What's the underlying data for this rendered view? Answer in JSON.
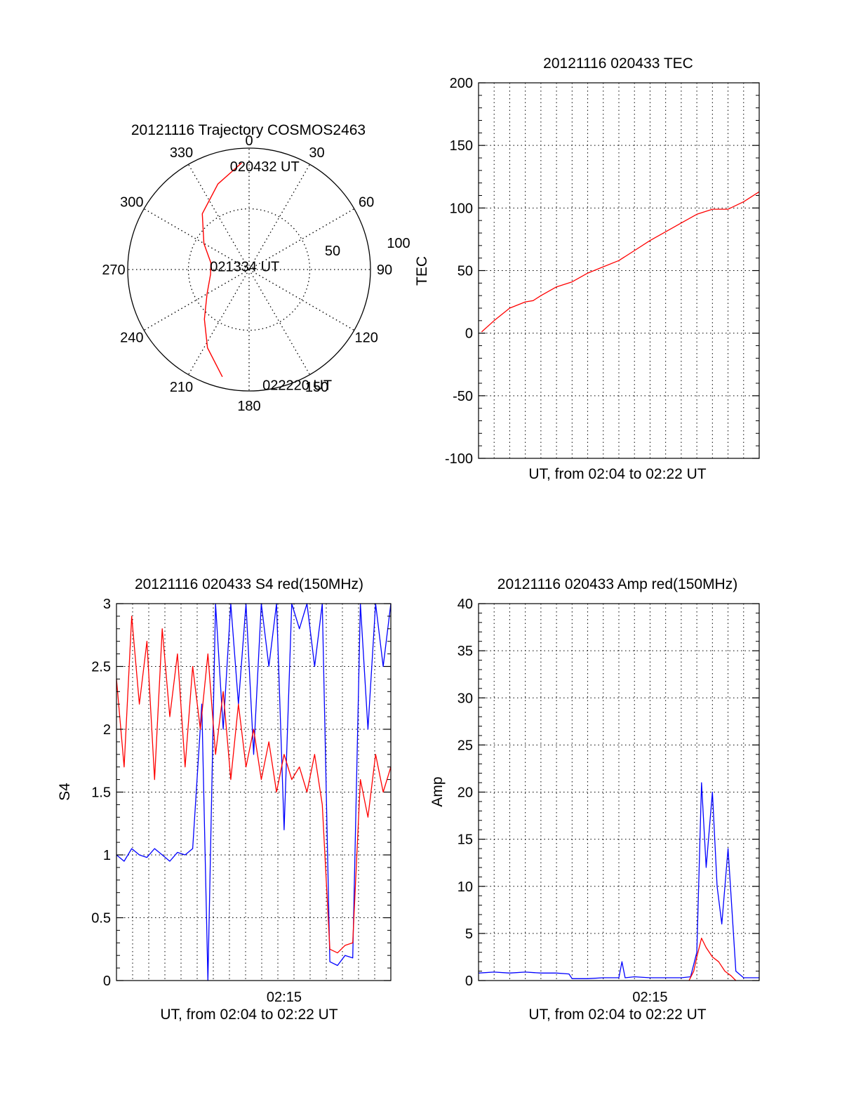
{
  "colors": {
    "red": "#ff0000",
    "blue": "#0000ff",
    "axis": "#000000",
    "grid": "#000000",
    "background": "#ffffff"
  },
  "chart_data": [
    {
      "id": "polar",
      "type": "polar-trajectory",
      "title": "20121116 Trajectory COSMOS2463",
      "angle_labels": [
        "0",
        "30",
        "60",
        "90",
        "120",
        "150",
        "180",
        "210",
        "240",
        "270",
        "300",
        "330"
      ],
      "radius_labels": [
        "50",
        "100"
      ],
      "rmax": 100,
      "grid": true,
      "track": {
        "color": "#ff0000",
        "points": [
          {
            "az": 356,
            "r": 88
          },
          {
            "az": 340,
            "r": 75
          },
          {
            "az": 320,
            "r": 60
          },
          {
            "az": 300,
            "r": 43
          },
          {
            "az": 280,
            "r": 32
          },
          {
            "az": 263,
            "r": 32
          },
          {
            "az": 240,
            "r": 40
          },
          {
            "az": 222,
            "r": 55
          },
          {
            "az": 208,
            "r": 73
          },
          {
            "az": 194,
            "r": 91
          }
        ]
      },
      "annotations": [
        {
          "text": "020432 UT",
          "az": 351,
          "r": 86
        },
        {
          "text": "021334 UT",
          "az": 275,
          "r": 30
        },
        {
          "text": "022220 UT",
          "az": 172,
          "r": 96
        }
      ]
    },
    {
      "id": "tec",
      "type": "line",
      "title": "20121116 020433 TEC",
      "xlabel": "UT, from 02:04 to 02:22 UT",
      "ylabel": "TEC",
      "xlim": [
        0,
        18
      ],
      "ylim": [
        -100,
        200
      ],
      "yticks": [
        -100,
        -50,
        0,
        50,
        100,
        150,
        200
      ],
      "x_tick_labels": [],
      "grid": true,
      "series": [
        {
          "color": "#ff0000",
          "x": [
            0.2,
            1.0,
            2.0,
            3.0,
            3.5,
            4.0,
            5.0,
            6.0,
            7.0,
            8.0,
            9.0,
            10.0,
            11.0,
            12.0,
            13.0,
            14.0,
            15.0,
            16.0,
            17.0,
            18.0
          ],
          "y": [
            1,
            10,
            20,
            25,
            26,
            30,
            37,
            41,
            48,
            53,
            58,
            66,
            74,
            81,
            88,
            95,
            99,
            99,
            105,
            113
          ]
        }
      ]
    },
    {
      "id": "s4",
      "type": "line",
      "title": "20121116 020433 S4 red(150MHz)",
      "xlabel": "UT, from 02:04 to 02:22 UT",
      "ylabel": "S4",
      "xlim": [
        0,
        18
      ],
      "ylim": [
        0,
        3
      ],
      "yticks": [
        0,
        0.5,
        1,
        1.5,
        2,
        2.5,
        3
      ],
      "x_tick_labels": [
        {
          "value": 11,
          "label": "02:15"
        }
      ],
      "grid": true,
      "series": [
        {
          "color": "#0000ff",
          "x": [
            0.0,
            0.5,
            1.0,
            1.5,
            2.0,
            2.5,
            3.0,
            3.5,
            4.0,
            4.5,
            5.0,
            5.6,
            6.0,
            6.5,
            7.0,
            7.5,
            8.0,
            8.5,
            9.0,
            9.5,
            10.0,
            10.5,
            11.0,
            11.5,
            12.0,
            12.5,
            13.0,
            13.5,
            14.0,
            14.5,
            15.0,
            15.5,
            16.0,
            16.5,
            17.0,
            17.5,
            18.0
          ],
          "y": [
            1.0,
            0.95,
            1.05,
            1.0,
            0.98,
            1.05,
            1.0,
            0.95,
            1.02,
            1.0,
            1.05,
            2.2,
            0.0,
            3.0,
            2.0,
            3.0,
            2.2,
            3.0,
            1.8,
            3.0,
            2.5,
            3.0,
            1.2,
            3.0,
            2.8,
            3.0,
            2.5,
            3.0,
            0.15,
            0.12,
            0.2,
            0.18,
            3.0,
            2.0,
            3.0,
            2.5,
            3.0
          ]
        },
        {
          "color": "#ff0000",
          "x": [
            0.0,
            0.5,
            1.0,
            1.5,
            2.0,
            2.5,
            3.0,
            3.5,
            4.0,
            4.5,
            5.0,
            5.5,
            6.0,
            6.5,
            7.0,
            7.5,
            8.0,
            8.5,
            9.0,
            9.5,
            10.0,
            10.5,
            11.0,
            11.5,
            12.0,
            12.5,
            13.0,
            13.5,
            14.0,
            14.5,
            15.0,
            15.5,
            16.0,
            16.5,
            17.0,
            17.5,
            18.0
          ],
          "y": [
            2.4,
            1.7,
            2.9,
            2.2,
            2.7,
            1.6,
            2.8,
            2.1,
            2.6,
            1.7,
            2.5,
            2.0,
            2.6,
            1.8,
            2.3,
            1.6,
            2.2,
            1.7,
            2.0,
            1.6,
            1.9,
            1.5,
            1.8,
            1.6,
            1.7,
            1.5,
            1.8,
            1.4,
            0.25,
            0.22,
            0.28,
            0.3,
            1.6,
            1.3,
            1.8,
            1.5,
            1.7
          ]
        }
      ]
    },
    {
      "id": "amp",
      "type": "line",
      "title": "20121116 020433 Amp red(150MHz)",
      "xlabel": "UT, from 02:04 to 02:22 UT",
      "ylabel": "Amp",
      "xlim": [
        0,
        18
      ],
      "ylim": [
        0,
        40
      ],
      "yticks": [
        0,
        5,
        10,
        15,
        20,
        25,
        30,
        35,
        40
      ],
      "x_tick_labels": [
        {
          "value": 11,
          "label": "02:15"
        }
      ],
      "grid": true,
      "series": [
        {
          "color": "#0000ff",
          "x": [
            0.0,
            1.0,
            2.0,
            3.0,
            4.0,
            5.0,
            5.8,
            6.0,
            7.0,
            8.0,
            9.0,
            9.2,
            9.4,
            10.0,
            11.0,
            12.0,
            13.0,
            13.6,
            14.0,
            14.3,
            14.6,
            15.0,
            15.3,
            15.6,
            16.0,
            16.5,
            17.0,
            18.0
          ],
          "y": [
            0.8,
            0.9,
            0.8,
            0.9,
            0.8,
            0.8,
            0.7,
            0.2,
            0.2,
            0.3,
            0.3,
            2.0,
            0.3,
            0.4,
            0.3,
            0.3,
            0.3,
            0.4,
            3.0,
            21.0,
            12.0,
            20.0,
            10.0,
            6.0,
            14.0,
            1.0,
            0.3,
            0.3
          ]
        },
        {
          "color": "#ff0000",
          "x": [
            13.5,
            13.8,
            14.0,
            14.3,
            14.6,
            15.0,
            15.4,
            15.8,
            16.2,
            16.5
          ],
          "y": [
            0.0,
            1.0,
            2.5,
            4.5,
            3.5,
            2.5,
            2.0,
            1.0,
            0.5,
            0.0
          ]
        }
      ]
    }
  ]
}
